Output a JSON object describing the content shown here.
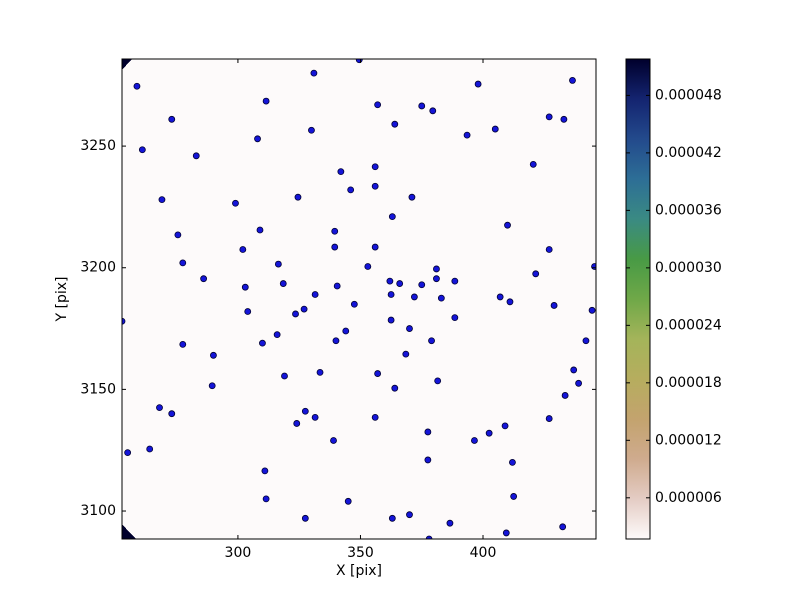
{
  "chart_data": {
    "type": "scatter",
    "xlabel": "X [pix]",
    "ylabel": "Y [pix]",
    "x": [
      258.8,
      261,
      273,
      283,
      269,
      275.5,
      277.5,
      286,
      299,
      302,
      303,
      304,
      308,
      309,
      311.5,
      316.5,
      318.5,
      324.5,
      330,
      331,
      323.5,
      327,
      331.5,
      316,
      310,
      277.5,
      290,
      289.5,
      319,
      333.5,
      340,
      344,
      347.5,
      340.5,
      339.5,
      339.5,
      342,
      346,
      356,
      356,
      356,
      353,
      357,
      364,
      371,
      363,
      375,
      379.5,
      393.5,
      398,
      405,
      420.5,
      427,
      433,
      436.5,
      349.5,
      362,
      366,
      362.5,
      362.5,
      370,
      372,
      375,
      381,
      381,
      383,
      388.5,
      388.5,
      379,
      368.5,
      357,
      364,
      381.5,
      356,
      339,
      331.5,
      327.5,
      324,
      311,
      311.5,
      327.5,
      345,
      363,
      370,
      378,
      386.5,
      409.5,
      412.5,
      412,
      409,
      402.5,
      396.5,
      377.5,
      377.5,
      427,
      433.5,
      437,
      439,
      442,
      444.5,
      445.5,
      429,
      427,
      421.5,
      410,
      407,
      411,
      432.5,
      268,
      273,
      264,
      255,
      252.7
    ],
    "y": [
      3274.6,
      3248.5,
      3261,
      3246,
      3228,
      3213.5,
      3202,
      3195.5,
      3226.5,
      3207.5,
      3192,
      3182,
      3253,
      3215.5,
      3268.5,
      3201.5,
      3193.5,
      3229,
      3256.5,
      3280,
      3181,
      3183,
      3189,
      3172.5,
      3169,
      3168.5,
      3164,
      3151.5,
      3155.5,
      3157,
      3170,
      3174,
      3185,
      3192.5,
      3208.5,
      3215,
      3239.5,
      3232,
      3241.5,
      3233.5,
      3208.5,
      3200.5,
      3267,
      3259,
      3229,
      3221,
      3266.5,
      3264.5,
      3254.5,
      3275.5,
      3257,
      3242.5,
      3262,
      3261,
      3277,
      3285.5,
      3194.5,
      3193.5,
      3189,
      3178.5,
      3175,
      3188,
      3193,
      3199.5,
      3195.5,
      3187.5,
      3194.5,
      3179.5,
      3170,
      3164.5,
      3156.5,
      3150.5,
      3153.5,
      3138.5,
      3129,
      3138.5,
      3141,
      3136,
      3116.5,
      3105,
      3097,
      3104,
      3097,
      3098.5,
      3088.5,
      3095,
      3091,
      3106,
      3120,
      3135,
      3132,
      3129,
      3132.5,
      3121,
      3138,
      3147.5,
      3158,
      3152.5,
      3170,
      3182.5,
      3200.5,
      3184.5,
      3207.5,
      3197.5,
      3217.5,
      3188,
      3186,
      3093.5,
      3142.5,
      3140,
      3125.5,
      3124,
      3178
    ],
    "color": "#1414d8",
    "xlim": [
      252.7,
      446.1
    ],
    "xticks": [
      300,
      350,
      400
    ],
    "ylim": [
      3088.5,
      3285.8
    ],
    "yticks": [
      3100,
      3150,
      3200,
      3250
    ],
    "colormap": [
      "#fdfafa",
      "#e4ccc4",
      "#cfab8e",
      "#c3a36e",
      "#b6ad5e",
      "#a4b45a",
      "#6fa848",
      "#489a45",
      "#3a8a83",
      "#2d6e96",
      "#234a8c",
      "#142470",
      "#00002c"
    ],
    "colorbar": {
      "lim": [
        1.7e-06,
        5.18e-05
      ],
      "ticks": [
        {
          "value": 6e-06,
          "label": "0.000006"
        },
        {
          "value": 1.2e-05,
          "label": "0.000012"
        },
        {
          "value": 1.8e-05,
          "label": "0.000018"
        },
        {
          "value": 2.4e-05,
          "label": "0.000024"
        },
        {
          "value": 3e-05,
          "label": "0.000030"
        },
        {
          "value": 3.6e-05,
          "label": "0.000036"
        },
        {
          "value": 4.2e-05,
          "label": "0.000042"
        },
        {
          "value": 4.8e-05,
          "label": "0.000048"
        }
      ]
    }
  }
}
